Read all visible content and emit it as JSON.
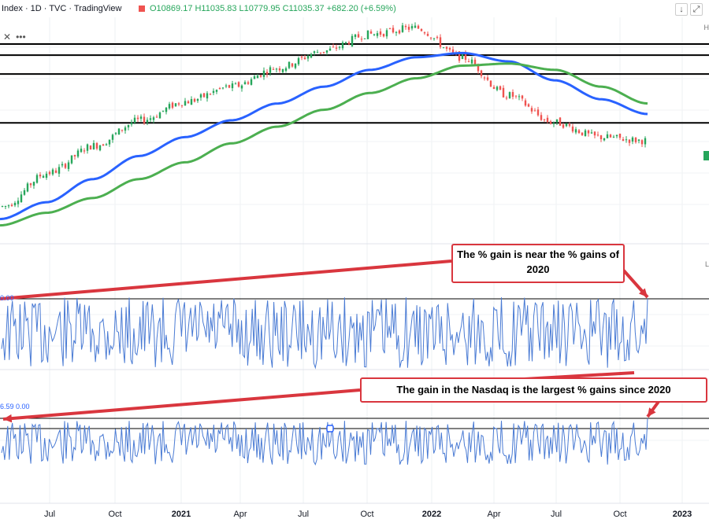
{
  "header": {
    "symbol": "Index · 1D · TVC · TradingView",
    "ohlc": "O10869.17 H11035.83 L10779.95 C11035.37 +682.20 (+6.59%)"
  },
  "controls": {
    "collapse_icon": "close-icon",
    "more_icon": "ellipsis-icon",
    "down_icon": "arrow-down-icon",
    "fullscreen_icon": "fullscreen-icon"
  },
  "indicator1": {
    "label": "0.00"
  },
  "indicator2": {
    "label": "6.59  0.00"
  },
  "callouts": {
    "first": "The % gain is near the % gains of 2020",
    "second": "The gain in the Nasdaq is the largest % gains since 2020"
  },
  "colors": {
    "price_up": "#26a65b",
    "price_down": "#ef5350",
    "ma_fast": "#2962ff",
    "ma_slow": "#4caf50",
    "annotation": "#d9363e"
  },
  "chart_data": [
    {
      "type": "line",
      "title": "",
      "x_ticks": [
        "Jul",
        "Oct",
        "2021",
        "Apr",
        "Jul",
        "Oct",
        "2022",
        "Apr",
        "Jul",
        "Oct",
        "2023"
      ],
      "series": [
        {
          "values": [
            7900,
            9500,
            10800,
            12000,
            12900,
            13600,
            14500,
            15300,
            16100,
            16400,
            15000,
            13200,
            11900,
            11200,
            11035
          ]
        },
        {
          "values": [
            7300,
            8100,
            9200,
            10300,
            11200,
            12000,
            12800,
            13600,
            14400,
            15000,
            15200,
            14800,
            13900,
            13000,
            12300
          ]
        },
        {
          "values": [
            7000,
            7600,
            8300,
            9200,
            10000,
            10900,
            11700,
            12500,
            13300,
            14000,
            14600,
            14700,
            14400,
            13600,
            12800
          ]
        }
      ],
      "horizontal_levels": [
        15630,
        15100,
        14200,
        11880
      ],
      "last_close": 11035.37
    },
    {
      "type": "line",
      "title": "",
      "series": [
        {
          "values": [
            0
          ]
        }
      ],
      "last_value": 6.59
    }
  ]
}
